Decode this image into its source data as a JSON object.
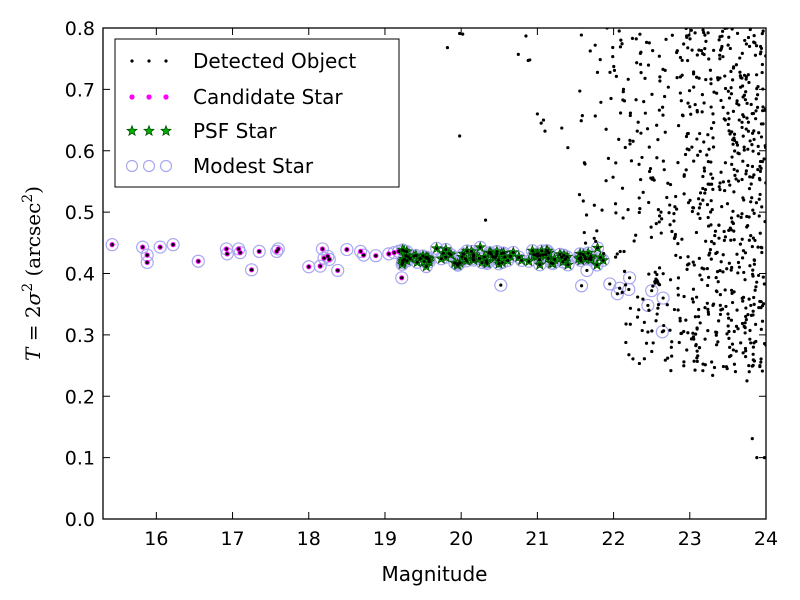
{
  "chart_data": {
    "type": "scatter",
    "title": "",
    "xlabel": "Magnitude",
    "ylabel": "T = 2σ² (arcsec²)",
    "ylabel_parts": {
      "lhs": "T",
      "eq": " = 2",
      "sigma": "σ",
      "sup": "2",
      "unit_open": " (arcsec",
      "unit_close": ")"
    },
    "xlim": [
      15.3,
      24
    ],
    "ylim": [
      0.0,
      0.8
    ],
    "xticks": [
      "16",
      "17",
      "18",
      "19",
      "20",
      "21",
      "22",
      "23",
      "24"
    ],
    "yticks": [
      "0.0",
      "0.1",
      "0.2",
      "0.3",
      "0.4",
      "0.5",
      "0.6",
      "0.7",
      "0.8"
    ],
    "legend_position": "top-left",
    "grid": false,
    "colors": {
      "detected": "#000000",
      "candidate": "#ff00ff",
      "psf_fill": "#00b000",
      "psf_edge": "#005000",
      "modest": "#a8a8f0"
    },
    "series": [
      {
        "name": "Detected Object",
        "marker": "dot",
        "values": "all objects"
      },
      {
        "name": "Candidate Star",
        "marker": "small-circle"
      },
      {
        "name": "PSF Star",
        "marker": "star"
      },
      {
        "name": "Modest Star",
        "marker": "hollow-circle"
      }
    ],
    "stars_bright": [
      [
        15.42,
        0.447
      ],
      [
        15.82,
        0.443
      ],
      [
        15.88,
        0.43
      ],
      [
        15.88,
        0.418
      ],
      [
        16.05,
        0.443
      ],
      [
        16.22,
        0.447
      ],
      [
        16.55,
        0.42
      ],
      [
        16.92,
        0.44
      ],
      [
        16.93,
        0.432
      ],
      [
        17.08,
        0.44
      ],
      [
        17.1,
        0.434
      ],
      [
        17.25,
        0.406
      ],
      [
        17.35,
        0.436
      ],
      [
        17.58,
        0.436
      ],
      [
        17.6,
        0.44
      ],
      [
        18.0,
        0.411
      ],
      [
        18.15,
        0.412
      ],
      [
        18.18,
        0.44
      ],
      [
        18.2,
        0.425
      ],
      [
        18.25,
        0.428
      ],
      [
        18.27,
        0.423
      ],
      [
        18.38,
        0.405
      ],
      [
        18.5,
        0.439
      ],
      [
        18.68,
        0.436
      ],
      [
        18.72,
        0.43
      ],
      [
        18.88,
        0.429
      ],
      [
        19.05,
        0.432
      ],
      [
        19.12,
        0.434
      ],
      [
        19.18,
        0.436
      ],
      [
        19.22,
        0.393
      ]
    ],
    "modest_faint": [
      [
        20.52,
        0.381
      ],
      [
        21.58,
        0.38
      ],
      [
        21.65,
        0.405
      ],
      [
        21.95,
        0.383
      ],
      [
        22.05,
        0.367
      ],
      [
        22.08,
        0.376
      ],
      [
        22.2,
        0.374
      ],
      [
        22.21,
        0.393
      ],
      [
        22.45,
        0.348
      ],
      [
        22.5,
        0.372
      ],
      [
        22.65,
        0.36
      ],
      [
        22.64,
        0.305
      ]
    ]
  }
}
